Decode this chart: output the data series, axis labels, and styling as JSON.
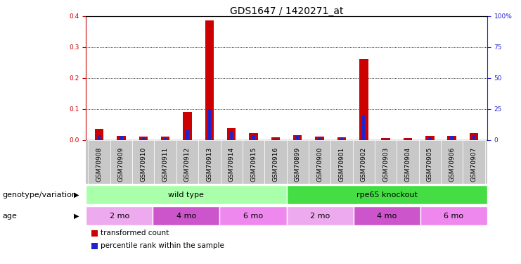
{
  "title": "GDS1647 / 1420271_at",
  "samples": [
    "GSM70908",
    "GSM70909",
    "GSM70910",
    "GSM70911",
    "GSM70912",
    "GSM70913",
    "GSM70914",
    "GSM70915",
    "GSM70916",
    "GSM70899",
    "GSM70900",
    "GSM70901",
    "GSM70902",
    "GSM70903",
    "GSM70904",
    "GSM70905",
    "GSM70906",
    "GSM70907"
  ],
  "transformed_count": [
    0.035,
    0.012,
    0.01,
    0.01,
    0.09,
    0.385,
    0.038,
    0.022,
    0.008,
    0.015,
    0.01,
    0.008,
    0.26,
    0.006,
    0.007,
    0.012,
    0.014,
    0.022
  ],
  "percentile_rank": [
    4,
    3,
    2,
    2,
    8,
    25,
    7,
    4,
    1,
    3,
    2,
    2,
    20,
    1,
    1,
    2,
    3,
    4
  ],
  "red_color": "#cc0000",
  "blue_color": "#2222cc",
  "plot_bg": "#ffffff",
  "tick_bg": "#c8c8c8",
  "genotype_row_bg": "#ffffff",
  "left_ylim": [
    0,
    0.4
  ],
  "right_ylim": [
    0,
    100
  ],
  "left_yticks": [
    0.0,
    0.1,
    0.2,
    0.3,
    0.4
  ],
  "right_yticks": [
    0,
    25,
    50,
    75,
    100
  ],
  "right_yticklabels": [
    "0",
    "25",
    "50",
    "75",
    "100%"
  ],
  "genotype_groups": [
    {
      "label": "wild type",
      "start": 0,
      "end": 9,
      "color": "#aaffaa"
    },
    {
      "label": "rpe65 knockout",
      "start": 9,
      "end": 18,
      "color": "#44dd44"
    }
  ],
  "age_groups": [
    {
      "label": "2 mo",
      "start": 0,
      "end": 3,
      "color": "#eeaaee"
    },
    {
      "label": "4 mo",
      "start": 3,
      "end": 6,
      "color": "#cc55cc"
    },
    {
      "label": "6 mo",
      "start": 6,
      "end": 9,
      "color": "#ee88ee"
    },
    {
      "label": "2 mo",
      "start": 9,
      "end": 12,
      "color": "#eeaaee"
    },
    {
      "label": "4 mo",
      "start": 12,
      "end": 15,
      "color": "#cc55cc"
    },
    {
      "label": "6 mo",
      "start": 15,
      "end": 18,
      "color": "#ee88ee"
    }
  ],
  "legend_items": [
    {
      "label": "transformed count",
      "color": "#cc0000"
    },
    {
      "label": "percentile rank within the sample",
      "color": "#2222cc"
    }
  ],
  "bar_width": 0.4,
  "title_fontsize": 10,
  "tick_fontsize": 6.5,
  "label_fontsize": 8,
  "annotation_fontsize": 8,
  "n_samples": 18
}
